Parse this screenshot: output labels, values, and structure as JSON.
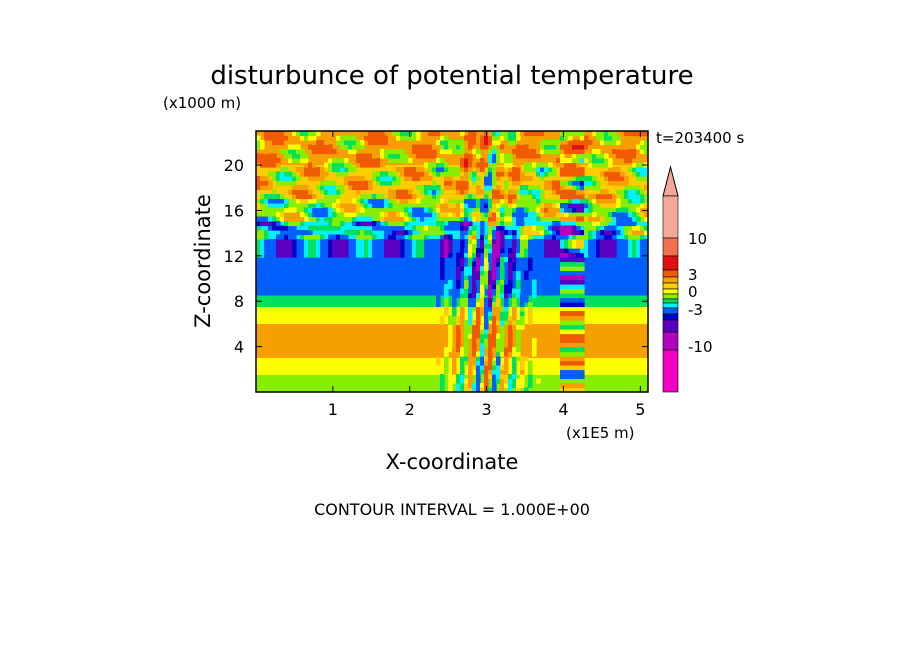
{
  "chart_data": {
    "type": "heatmap",
    "title": "disturbunce of potential temperature",
    "z_unit_label": "(x1000 m)",
    "x_unit_label": "(x1E5 m)",
    "xlabel": "X-coordinate",
    "ylabel": "Z-coordinate",
    "time_label": "t=203400 s",
    "contour_interval_label": "CONTOUR INTERVAL = 1.000E+00",
    "xlim": [
      0,
      5.1
    ],
    "ylim": [
      0,
      23
    ],
    "x_ticks": [
      1,
      2,
      3,
      4,
      5
    ],
    "y_ticks": [
      4,
      8,
      12,
      16,
      20
    ],
    "colorbar": {
      "levels_label": [
        "10",
        "3",
        "0",
        "-3",
        "-10"
      ],
      "label_values": [
        10,
        3,
        0,
        -3,
        -10
      ],
      "colors_high_to_low": [
        "#f4a89a",
        "#f0a090",
        "#f07050",
        "#e01010",
        "#f05a00",
        "#f5a000",
        "#ffcc00",
        "#ffff00",
        "#88ee00",
        "#00e060",
        "#00f0ff",
        "#0060ff",
        "#0000cc",
        "#5a00c0",
        "#b000c0",
        "#f000c0"
      ]
    },
    "bands": [
      {
        "z_from": 0,
        "z_to": 1.5,
        "value": 0.5
      },
      {
        "z_from": 1.5,
        "z_to": 3,
        "value": 1
      },
      {
        "z_from": 3,
        "z_to": 6,
        "value": 2
      },
      {
        "z_from": 6,
        "z_to": 7.5,
        "value": 1
      },
      {
        "z_from": 7.5,
        "z_to": 8.5,
        "value": -0.5
      },
      {
        "z_from": 8.5,
        "z_to": 10,
        "value": -1.5
      },
      {
        "z_from": 10,
        "z_to": 13.5,
        "value": -2
      },
      {
        "z_from": 13.5,
        "z_to": 15,
        "value": -1
      },
      {
        "z_from": 15,
        "z_to": 17,
        "value": 0.5
      },
      {
        "z_from": 17,
        "z_to": 20,
        "value": 1.5
      },
      {
        "z_from": 20,
        "z_to": 23,
        "value": 2
      }
    ]
  }
}
